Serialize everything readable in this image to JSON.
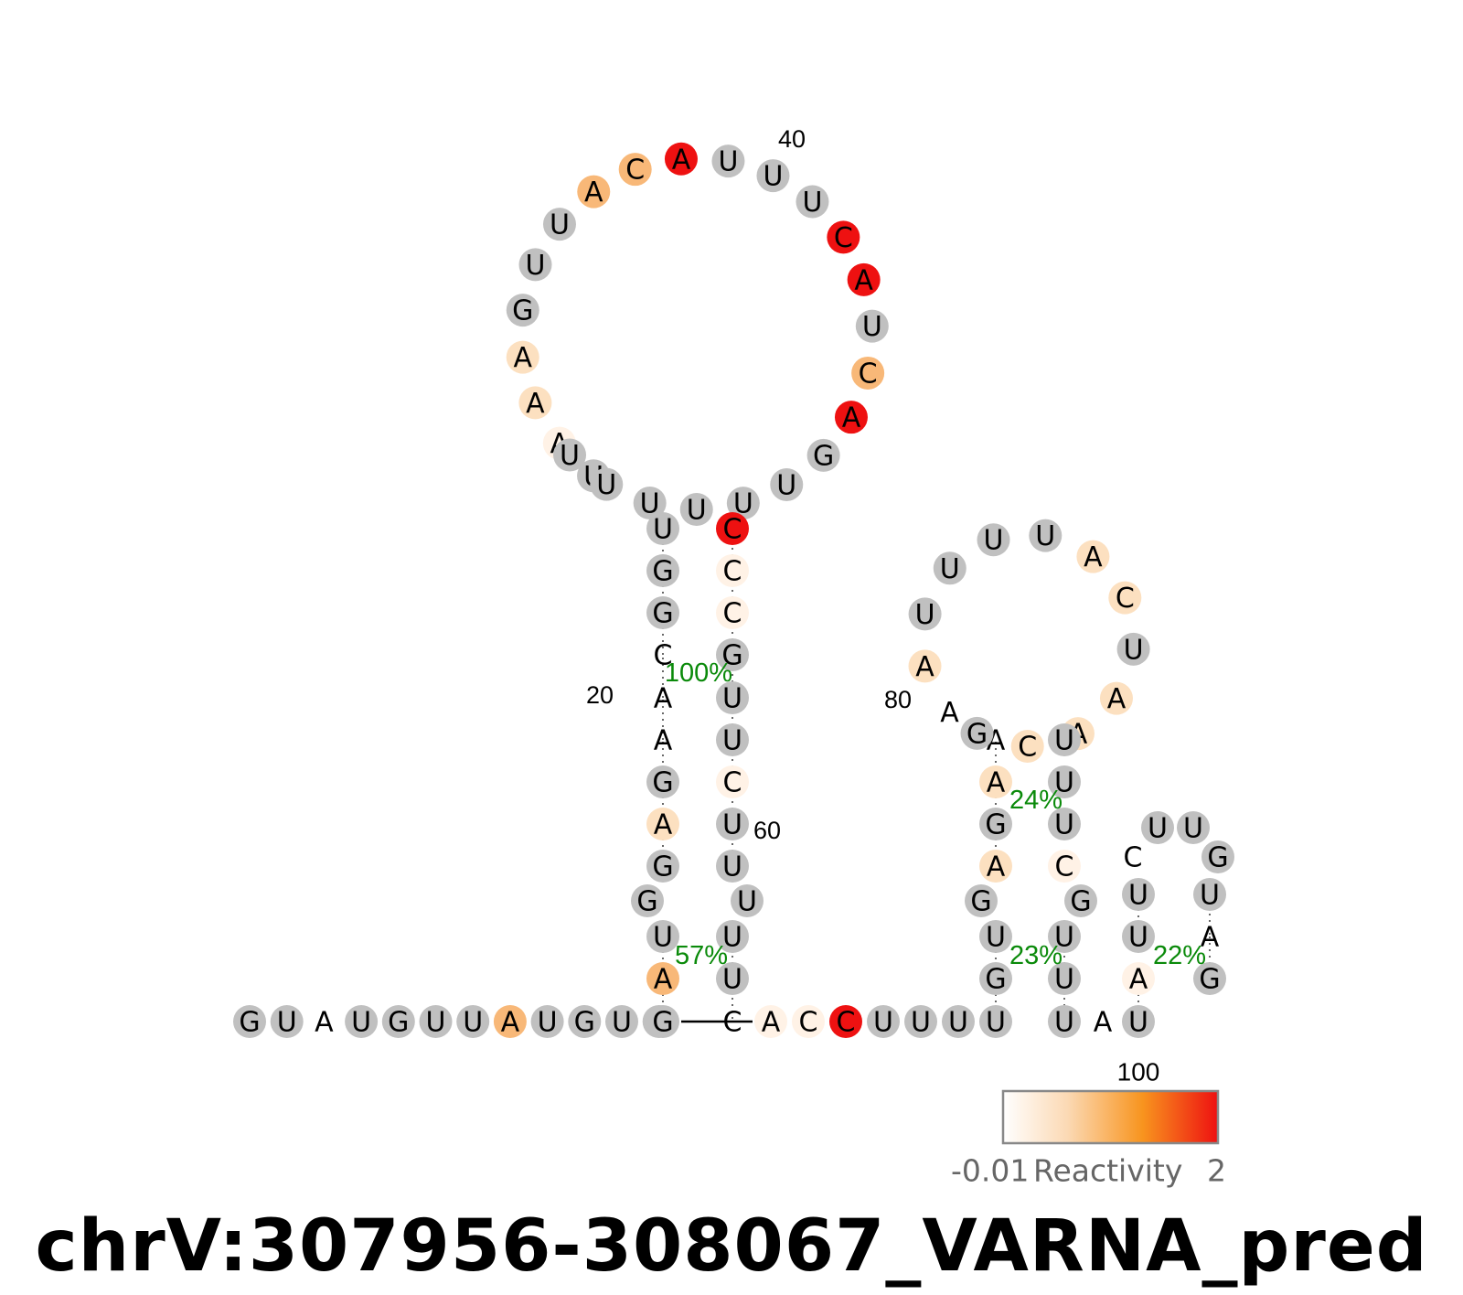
{
  "title": "chrV:307956-308067_VARNA_pred",
  "colors": {
    "unpaired_grey": "#c0c0c0",
    "high": "#ee1111",
    "mid": "#f8b878",
    "low": "#fce0c0",
    "faint": "#fff2e6",
    "percent_text": "#0a8a0a"
  },
  "nucleotides": [
    {
      "base": "G",
      "level": "grey"
    },
    {
      "base": "U",
      "level": "grey"
    },
    {
      "base": "A",
      "level": "none"
    },
    {
      "base": "U",
      "level": "grey"
    },
    {
      "base": "G",
      "level": "grey"
    },
    {
      "base": "U",
      "level": "grey"
    },
    {
      "base": "U",
      "level": "grey"
    },
    {
      "base": "A",
      "level": "mid"
    },
    {
      "base": "U",
      "level": "grey"
    },
    {
      "base": "G",
      "level": "grey"
    },
    {
      "base": "U",
      "level": "grey"
    },
    {
      "base": "U",
      "level": "grey"
    },
    {
      "base": "G",
      "level": "grey"
    },
    {
      "base": "A",
      "level": "mid"
    },
    {
      "base": "U",
      "level": "grey"
    },
    {
      "base": "G",
      "level": "grey"
    },
    {
      "base": "G",
      "level": "grey"
    },
    {
      "base": "A",
      "level": "low"
    },
    {
      "base": "G",
      "level": "grey"
    },
    {
      "base": "A",
      "level": "none"
    },
    {
      "base": "A",
      "level": "none"
    },
    {
      "base": "C",
      "level": "none"
    },
    {
      "base": "G",
      "level": "grey"
    },
    {
      "base": "G",
      "level": "grey"
    },
    {
      "base": "U",
      "level": "grey"
    },
    {
      "base": "U",
      "level": "grey"
    },
    {
      "base": "A",
      "level": "faint"
    },
    {
      "base": "A",
      "level": "low"
    },
    {
      "base": "A",
      "level": "low"
    },
    {
      "base": "G",
      "level": "grey"
    },
    {
      "base": "U",
      "level": "grey"
    },
    {
      "base": "U",
      "level": "grey"
    },
    {
      "base": "A",
      "level": "mid"
    },
    {
      "base": "C",
      "level": "mid"
    },
    {
      "base": "A",
      "level": "high"
    },
    {
      "base": "U",
      "level": "grey"
    },
    {
      "base": "U",
      "level": "grey"
    },
    {
      "base": "U",
      "level": "grey"
    },
    {
      "base": "C",
      "level": "high"
    },
    {
      "base": "A",
      "level": "high"
    },
    {
      "base": "U",
      "level": "grey"
    },
    {
      "base": "C",
      "level": "mid"
    },
    {
      "base": "A",
      "level": "high"
    },
    {
      "base": "G",
      "level": "grey"
    },
    {
      "base": "U",
      "level": "grey"
    },
    {
      "base": "U",
      "level": "grey"
    },
    {
      "base": "U",
      "level": "grey"
    },
    {
      "base": "U",
      "level": "grey"
    },
    {
      "base": "U",
      "level": "grey"
    },
    {
      "base": "U",
      "level": "grey"
    },
    {
      "base": "C",
      "level": "high"
    },
    {
      "base": "C",
      "level": "faint"
    },
    {
      "base": "C",
      "level": "faint"
    },
    {
      "base": "G",
      "level": "grey"
    },
    {
      "base": "U",
      "level": "grey"
    },
    {
      "base": "U",
      "level": "grey"
    },
    {
      "base": "C",
      "level": "faint"
    },
    {
      "base": "U",
      "level": "grey"
    },
    {
      "base": "U",
      "level": "grey"
    },
    {
      "base": "U",
      "level": "grey"
    },
    {
      "base": "U",
      "level": "grey"
    },
    {
      "base": "U",
      "level": "grey"
    },
    {
      "base": "C",
      "level": "none"
    },
    {
      "base": "A",
      "level": "faint"
    },
    {
      "base": "C",
      "level": "faint"
    },
    {
      "base": "C",
      "level": "high"
    },
    {
      "base": "U",
      "level": "grey"
    },
    {
      "base": "U",
      "level": "grey"
    },
    {
      "base": "U",
      "level": "grey"
    },
    {
      "base": "U",
      "level": "grey"
    },
    {
      "base": "G",
      "level": "grey"
    },
    {
      "base": "U",
      "level": "grey"
    },
    {
      "base": "G",
      "level": "grey"
    },
    {
      "base": "A",
      "level": "low"
    },
    {
      "base": "G",
      "level": "grey"
    },
    {
      "base": "A",
      "level": "low"
    },
    {
      "base": "A",
      "level": "none"
    },
    {
      "base": "A",
      "level": "none"
    },
    {
      "base": "A",
      "level": "low"
    },
    {
      "base": "U",
      "level": "grey"
    },
    {
      "base": "U",
      "level": "grey"
    },
    {
      "base": "U",
      "level": "grey"
    },
    {
      "base": "U",
      "level": "grey"
    },
    {
      "base": "A",
      "level": "low"
    },
    {
      "base": "C",
      "level": "low"
    },
    {
      "base": "U",
      "level": "grey"
    },
    {
      "base": "A",
      "level": "low"
    },
    {
      "base": "A",
      "level": "low"
    },
    {
      "base": "C",
      "level": "low"
    },
    {
      "base": "G",
      "level": "grey"
    },
    {
      "base": "U",
      "level": "grey"
    },
    {
      "base": "U",
      "level": "grey"
    },
    {
      "base": "U",
      "level": "grey"
    },
    {
      "base": "C",
      "level": "faint"
    },
    {
      "base": "G",
      "level": "grey"
    },
    {
      "base": "U",
      "level": "grey"
    },
    {
      "base": "U",
      "level": "grey"
    },
    {
      "base": "U",
      "level": "grey"
    },
    {
      "base": "A",
      "level": "none"
    },
    {
      "base": "U",
      "level": "grey"
    },
    {
      "base": "A",
      "level": "faint"
    },
    {
      "base": "U",
      "level": "grey"
    },
    {
      "base": "U",
      "level": "grey"
    },
    {
      "base": "C",
      "level": "none"
    },
    {
      "base": "U",
      "level": "grey"
    },
    {
      "base": "U",
      "level": "grey"
    },
    {
      "base": "G",
      "level": "grey"
    },
    {
      "base": "U",
      "level": "grey"
    },
    {
      "base": "A",
      "level": "none"
    },
    {
      "base": "G",
      "level": "grey"
    }
  ],
  "pairs": [
    {
      "i": 12,
      "j": 63,
      "type": "wc"
    },
    {
      "i": 13,
      "j": 62,
      "type": "gc"
    },
    {
      "i": 14,
      "j": 61,
      "type": "wc"
    },
    {
      "i": 17,
      "j": 58,
      "type": "gu"
    },
    {
      "i": 18,
      "j": 57,
      "type": "gu"
    },
    {
      "i": 19,
      "j": 56,
      "type": "wc"
    },
    {
      "i": 20,
      "j": 55,
      "type": "gc"
    },
    {
      "i": 21,
      "j": 54,
      "type": "wc"
    },
    {
      "i": 22,
      "j": 53,
      "type": "wc"
    },
    {
      "i": 23,
      "j": 52,
      "type": "gc"
    },
    {
      "i": 24,
      "j": 51,
      "type": "gc"
    },
    {
      "i": 25,
      "j": 50,
      "type": "gc"
    },
    {
      "i": 70,
      "j": 104,
      "type": "gu"
    },
    {
      "i": 71,
      "j": 103,
      "type": "wc"
    },
    {
      "i": 72,
      "j": 102,
      "type": "gu"
    },
    {
      "i": 74,
      "j": 99,
      "type": "gc"
    },
    {
      "i": 75,
      "j": 98,
      "type": "wc"
    },
    {
      "i": 76,
      "j": 97,
      "type": "wc"
    },
    {
      "i": 77,
      "j": 96,
      "type": "wc"
    },
    {
      "i": 105,
      "j": 111,
      "type": "gu"
    },
    {
      "i": 106,
      "j": 110,
      "type": "wc"
    },
    {
      "i": 107,
      "j": 109,
      "type": "gu"
    }
  ],
  "position_numbers": [
    "20",
    "40",
    "60",
    "80"
  ],
  "percentages": [
    "100%",
    "57%",
    "24%",
    "23%",
    "22%"
  ],
  "legend": {
    "label": "Reactivity",
    "min_label": "-0.01",
    "max_label": "2",
    "top_label": "100"
  }
}
